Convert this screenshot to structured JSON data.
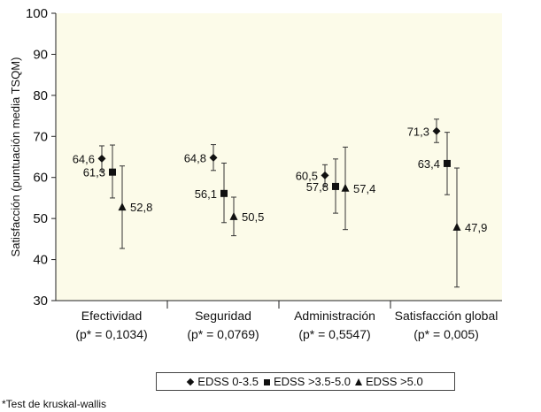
{
  "chart_data": {
    "type": "scatter",
    "ylabel": "Satisfacción (puntuación media TSQM)",
    "ylim": [
      30,
      100
    ],
    "yticks": [
      30,
      40,
      50,
      60,
      70,
      80,
      90,
      100
    ],
    "grid": false,
    "legend_placement": "bottom",
    "background_color": "#fcfbe9",
    "categories": [
      {
        "label": "Efectividad",
        "sublabel": "(p* = 0,1034)"
      },
      {
        "label": "Seguridad",
        "sublabel": "(p* = 0,0769)"
      },
      {
        "label": "Administración",
        "sublabel": "(p* = 0,5547)"
      },
      {
        "label": "Satisfacción global",
        "sublabel": "(p* = 0,005)"
      }
    ],
    "series": [
      {
        "name": "EDSS 0-3.5",
        "marker": "diamond",
        "values": [
          64.6,
          64.8,
          60.5,
          71.3
        ],
        "labels": [
          "64,6",
          "64,8",
          "60,5",
          "71,3"
        ],
        "error_low": [
          61.5,
          61.7,
          57.9,
          68.5
        ],
        "error_high": [
          67.7,
          68.0,
          63.1,
          74.2
        ]
      },
      {
        "name": "EDSS >3.5-5.0",
        "marker": "square",
        "values": [
          61.3,
          56.1,
          57.8,
          63.4
        ],
        "labels": [
          "61,3",
          "56,1",
          "57,8",
          "63,4"
        ],
        "error_low": [
          55.0,
          49.0,
          51.3,
          55.8
        ],
        "error_high": [
          67.9,
          63.5,
          64.5,
          71.0
        ]
      },
      {
        "name": "EDSS >5.0",
        "marker": "triangle",
        "values": [
          52.8,
          50.5,
          57.4,
          47.9
        ],
        "labels": [
          "52,8",
          "50,5",
          "57,4",
          "47,9"
        ],
        "error_low": [
          42.7,
          45.8,
          47.3,
          33.3
        ],
        "error_high": [
          62.8,
          55.2,
          67.4,
          62.3
        ]
      }
    ]
  },
  "footnote": "*Test de kruskal-wallis"
}
